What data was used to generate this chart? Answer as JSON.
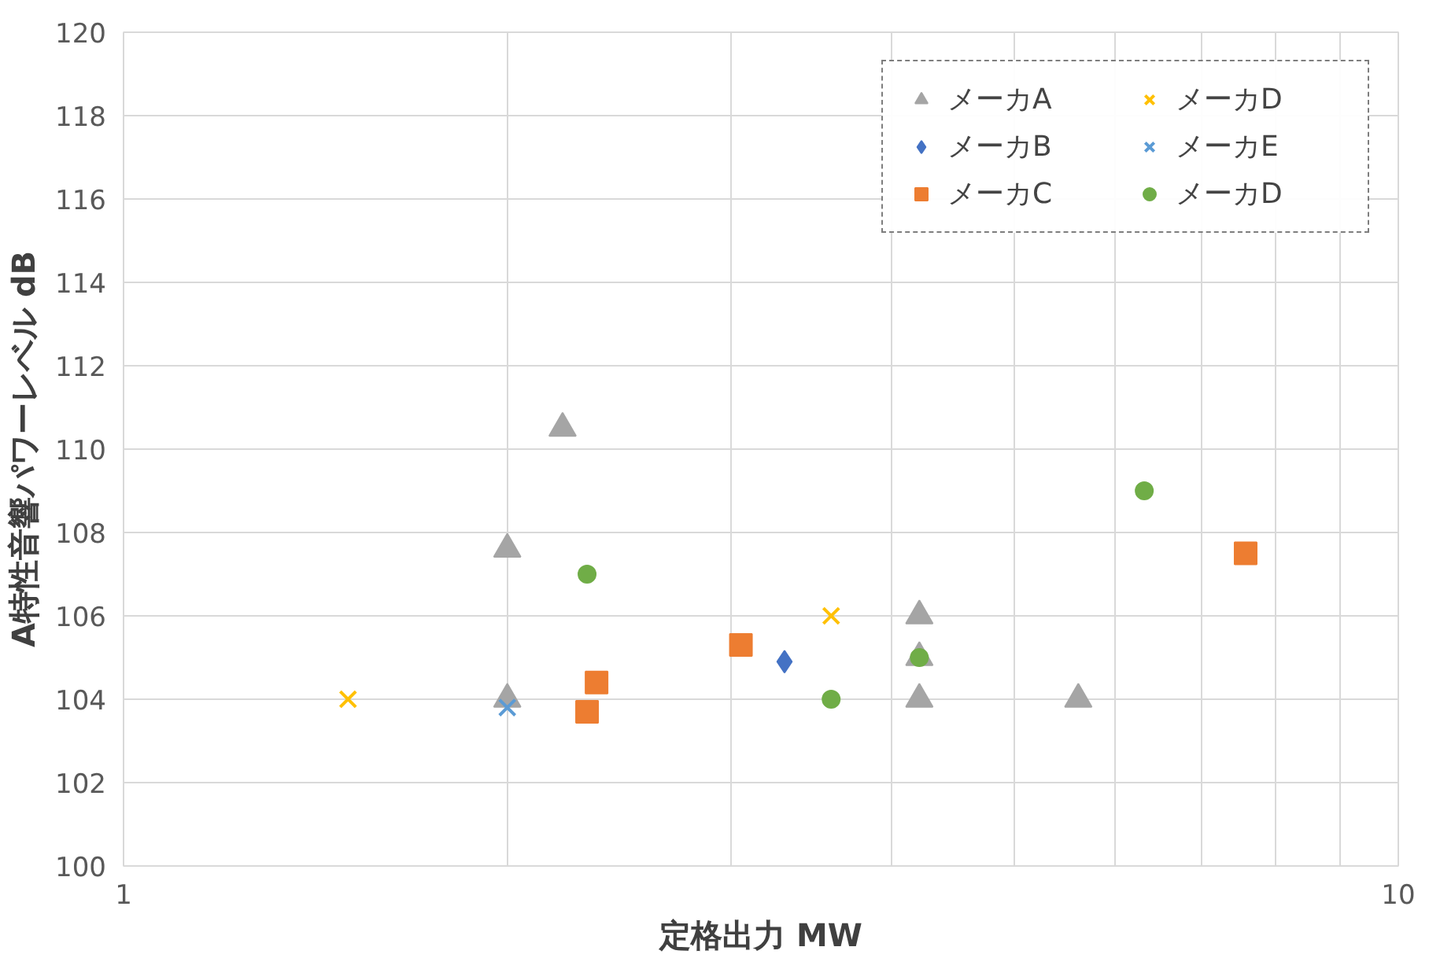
{
  "chart_data": {
    "type": "scatter",
    "xlabel": "定格出力 MW",
    "ylabel": "A特性音響パワーレベル dB",
    "log": "x",
    "grid": true,
    "legend": "top right",
    "xlim": [
      1,
      10
    ],
    "xticks": [
      1,
      {
        "value": 2,
        "label": null
      },
      {
        "value": 3,
        "label": null
      },
      {
        "value": 4,
        "label": null
      },
      {
        "value": 5,
        "label": null
      },
      {
        "value": 6,
        "label": null
      },
      {
        "value": 7,
        "label": null
      },
      {
        "value": 8,
        "label": null
      },
      {
        "value": 9,
        "label": null
      },
      10
    ],
    "ylim": [
      100,
      120
    ],
    "yticks": [
      100,
      102,
      104,
      106,
      108,
      110,
      112,
      114,
      116,
      118,
      120
    ],
    "series": [
      {
        "name": "メーカA",
        "color": "#a5a5a5",
        "marker": "triangle",
        "x": [
          2.0,
          2.21,
          2.0,
          4.21,
          4.21,
          4.21,
          5.61
        ],
        "values": [
          107.6,
          110.5,
          104.0,
          106.0,
          105.0,
          104.0,
          104.0
        ]
      },
      {
        "name": "メーカB",
        "color": "#4472c4",
        "marker": "diamond",
        "x": [
          3.3
        ],
        "values": [
          104.9
        ]
      },
      {
        "name": "メーカC",
        "color": "#ed7d31",
        "marker": "square",
        "x": [
          2.31,
          2.35,
          3.05,
          7.59
        ],
        "values": [
          103.7,
          104.4,
          105.3,
          107.5
        ]
      },
      {
        "name": "メーカD",
        "color": "#ffc000",
        "marker": "cross",
        "x": [
          1.5,
          3.59
        ],
        "values": [
          104.0,
          106.0
        ]
      },
      {
        "name": "メーカE",
        "color": "#5b9bd5",
        "marker": "cross",
        "x": [
          2.0
        ],
        "values": [
          103.8
        ]
      },
      {
        "name": "メーカD",
        "color": "#70ad47",
        "marker": "circle",
        "x": [
          2.31,
          3.59,
          4.21,
          6.32
        ],
        "values": [
          107.0,
          104.0,
          105.0,
          109.0
        ]
      }
    ]
  }
}
